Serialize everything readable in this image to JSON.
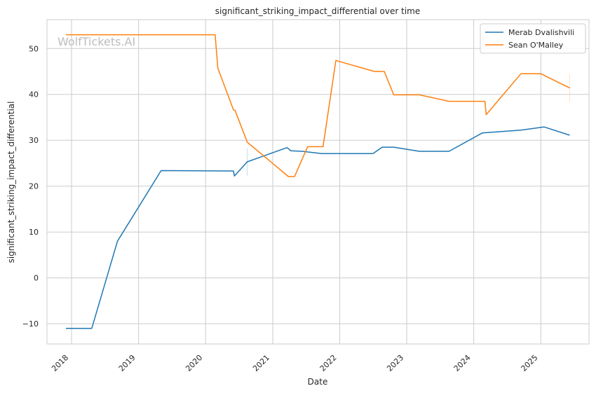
{
  "watermark": "WolfTickets.AI",
  "chart_data": {
    "type": "line",
    "title": "significant_striking_impact_differential over time",
    "xlabel": "Date",
    "ylabel": "significant_striking_impact_differential",
    "x_ticks": [
      "2018",
      "2019",
      "2020",
      "2021",
      "2022",
      "2023",
      "2024",
      "2025"
    ],
    "y_ticks": [
      -10,
      0,
      10,
      20,
      30,
      40,
      50
    ],
    "xlim": [
      "2017-08-20",
      "2025-09-20"
    ],
    "ylim": [
      -14.4,
      56.3
    ],
    "grid": true,
    "legend_position": "top-right",
    "series": [
      {
        "name": "Merab Dvalishvili",
        "color": "#1f77b4",
        "points": [
          [
            "2017-12-01",
            -11.0
          ],
          [
            "2018-04-21",
            -11.0
          ],
          [
            "2018-09-08",
            8.0
          ],
          [
            "2019-05-04",
            23.4
          ],
          [
            "2020-06-01",
            23.3
          ],
          [
            "2020-06-06",
            22.2
          ],
          [
            "2020-08-15",
            25.3
          ],
          [
            "2021-03-20",
            28.4
          ],
          [
            "2021-04-10",
            27.7
          ],
          [
            "2021-06-10",
            27.6
          ],
          [
            "2021-09-25",
            27.1
          ],
          [
            "2022-07-01",
            27.1
          ],
          [
            "2022-08-20",
            28.5
          ],
          [
            "2022-10-22",
            28.5
          ],
          [
            "2023-03-11",
            27.6
          ],
          [
            "2023-08-19",
            27.6
          ],
          [
            "2024-02-17",
            31.6
          ],
          [
            "2024-09-14",
            32.2
          ],
          [
            "2025-01-18",
            32.9
          ],
          [
            "2025-06-07",
            31.1
          ]
        ]
      },
      {
        "name": "Sean O'Malley",
        "color": "#ff7f0e",
        "points": [
          [
            "2017-12-01",
            53.0
          ],
          [
            "2020-02-22",
            53.0
          ],
          [
            "2020-03-08",
            45.7
          ],
          [
            "2020-06-01",
            36.6
          ],
          [
            "2020-06-10",
            36.5
          ],
          [
            "2020-08-15",
            29.6
          ],
          [
            "2021-03-27",
            22.1
          ],
          [
            "2021-04-30",
            22.1
          ],
          [
            "2021-07-10",
            28.6
          ],
          [
            "2021-10-02",
            28.6
          ],
          [
            "2021-12-11",
            47.4
          ],
          [
            "2022-07-09",
            45.0
          ],
          [
            "2022-09-01",
            45.0
          ],
          [
            "2022-10-22",
            39.9
          ],
          [
            "2023-03-11",
            39.9
          ],
          [
            "2023-08-19",
            38.5
          ],
          [
            "2024-03-02",
            38.5
          ],
          [
            "2024-03-09",
            35.6
          ],
          [
            "2024-09-14",
            44.5
          ],
          [
            "2025-01-01",
            44.5
          ],
          [
            "2025-06-07",
            41.4
          ]
        ]
      }
    ],
    "error_bars": [
      {
        "series": "Merab Dvalishvili",
        "x": "2020-08-15",
        "low": 22.3,
        "high": 28.2
      },
      {
        "series": "Sean O'Malley",
        "x": "2025-06-07",
        "low": 38.4,
        "high": 44.5
      }
    ]
  }
}
